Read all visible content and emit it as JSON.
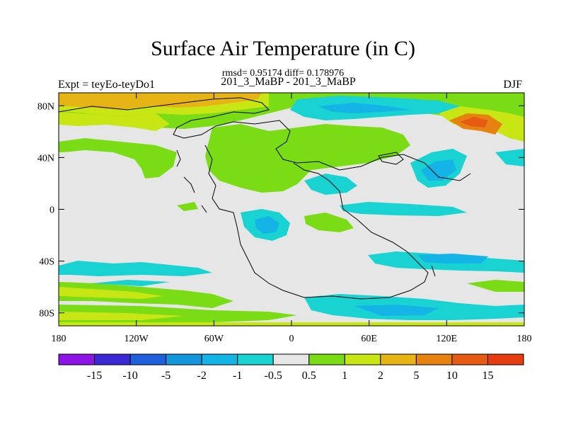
{
  "title": "Surface Air Temperature (in C)",
  "stats": "rmsd= 0.95174 diff= 0.178976",
  "experiment": "Expt = teyEo-teyDo1",
  "subtitle": "201_3_MaBP - 201_3_MaBP",
  "season": "DJF",
  "axes": {
    "lat_ticks": [
      {
        "value": 80,
        "label": "80N"
      },
      {
        "value": 40,
        "label": "40N"
      },
      {
        "value": 0,
        "label": "0"
      },
      {
        "value": -40,
        "label": "40S"
      },
      {
        "value": -80,
        "label": "80S"
      }
    ],
    "lon_ticks": [
      {
        "value": -180,
        "label": "180"
      },
      {
        "value": -120,
        "label": "120W"
      },
      {
        "value": -60,
        "label": "60W"
      },
      {
        "value": 0,
        "label": "0"
      },
      {
        "value": 60,
        "label": "60E"
      },
      {
        "value": 120,
        "label": "120E"
      },
      {
        "value": 180,
        "label": "180"
      }
    ],
    "lon_range": [
      -180,
      180
    ],
    "lat_range": [
      -90,
      90
    ]
  },
  "colorbar": {
    "labels": [
      "-15",
      "-10",
      "-5",
      "-2",
      "-1",
      "-0.5",
      "0.5",
      "1",
      "2",
      "5",
      "10",
      "15"
    ],
    "colors": [
      "#8e14e6",
      "#3c28d2",
      "#1e5fdc",
      "#1496dc",
      "#14b4e6",
      "#19d2d2",
      "#e6e6e6",
      "#7adc14",
      "#c8e614",
      "#e6b414",
      "#e6820f",
      "#e65a14",
      "#e63c0f"
    ]
  },
  "colors": {
    "neutral": "#e6e6e6",
    "coast": "#000000"
  }
}
